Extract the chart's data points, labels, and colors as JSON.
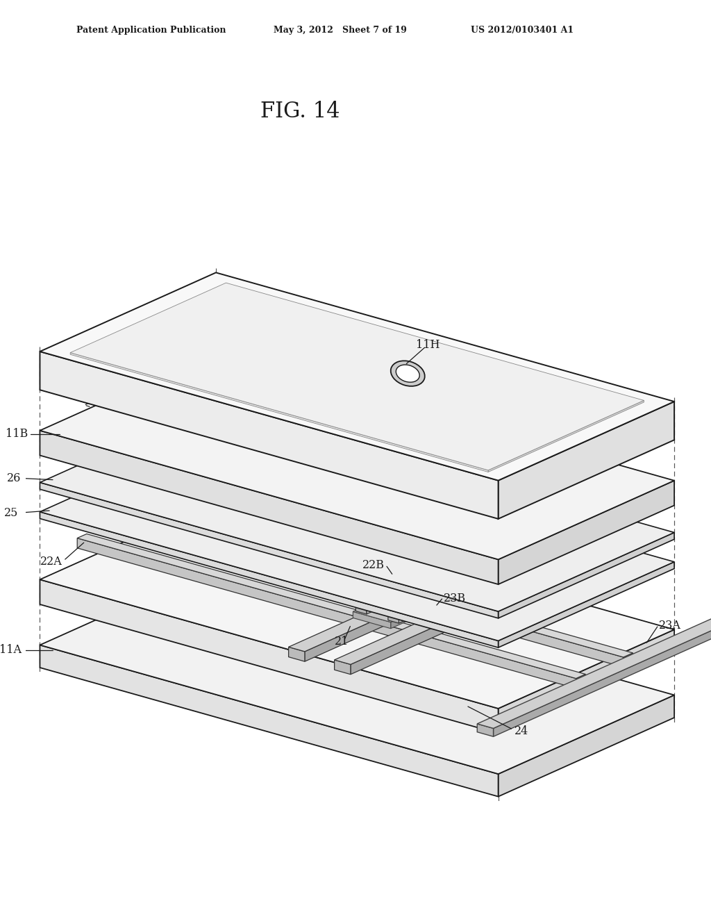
{
  "header_left": "Patent Application Publication",
  "header_mid": "May 3, 2012   Sheet 7 of 19",
  "header_right": "US 2012/0103401 A1",
  "fig_title": "FIG. 14",
  "bg_color": "#ffffff",
  "lc": "#1a1a1a",
  "labels": [
    "11H",
    "11B",
    "26",
    "25",
    "23A",
    "23B",
    "22A",
    "22B",
    "21",
    "24",
    "11A"
  ]
}
